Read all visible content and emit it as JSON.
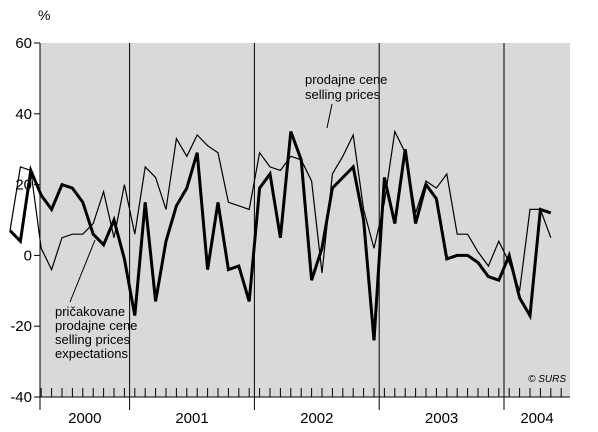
{
  "chart_data": {
    "type": "line",
    "ylabel": "%",
    "ylim": [
      -40,
      60
    ],
    "yticks": [
      -40,
      -20,
      0,
      20,
      40,
      60
    ],
    "ytick_labels": [
      "-40",
      "-20",
      "0",
      "20",
      "40",
      "60"
    ],
    "years": [
      "2000",
      "2001",
      "2002",
      "2003",
      "2004"
    ],
    "months_per_year": 12,
    "grid": false,
    "background_color": "#d9d9d9",
    "annotations": {
      "selling_prices": [
        "prodajne cene",
        "selling prices"
      ],
      "expectations": [
        "pričakovane",
        "prodajne cene",
        "selling prices",
        "expectations"
      ]
    },
    "copyright": "© SURS",
    "series": [
      {
        "key": "selling_prices",
        "color": "#000000",
        "thick": true,
        "values": [
          7,
          4,
          24,
          17,
          13,
          20,
          19,
          15,
          6,
          3,
          10,
          -1,
          -17,
          15,
          -13,
          4,
          14,
          19,
          29,
          -4,
          15,
          -4,
          -3,
          -13,
          19,
          23,
          5,
          35,
          27,
          -7,
          2,
          19,
          22,
          25,
          10,
          -24,
          22,
          9,
          30,
          9,
          20,
          16,
          -1,
          0,
          0,
          -2,
          -6,
          -7,
          0,
          -12,
          -17,
          13,
          12
        ]
      },
      {
        "key": "expectations",
        "color": "#000000",
        "thick": false,
        "values": [
          7,
          25,
          24,
          2,
          -4,
          5,
          6,
          6,
          9,
          18,
          5,
          20,
          6,
          25,
          22,
          13,
          33,
          28,
          34,
          31,
          29,
          15,
          14,
          13,
          29,
          25,
          24,
          28,
          27,
          21,
          -5,
          23,
          28,
          34,
          13,
          2,
          15,
          35,
          29,
          12,
          21,
          19,
          23,
          6,
          6,
          1,
          -3,
          4,
          -2,
          -10,
          13,
          13,
          5
        ]
      }
    ]
  }
}
